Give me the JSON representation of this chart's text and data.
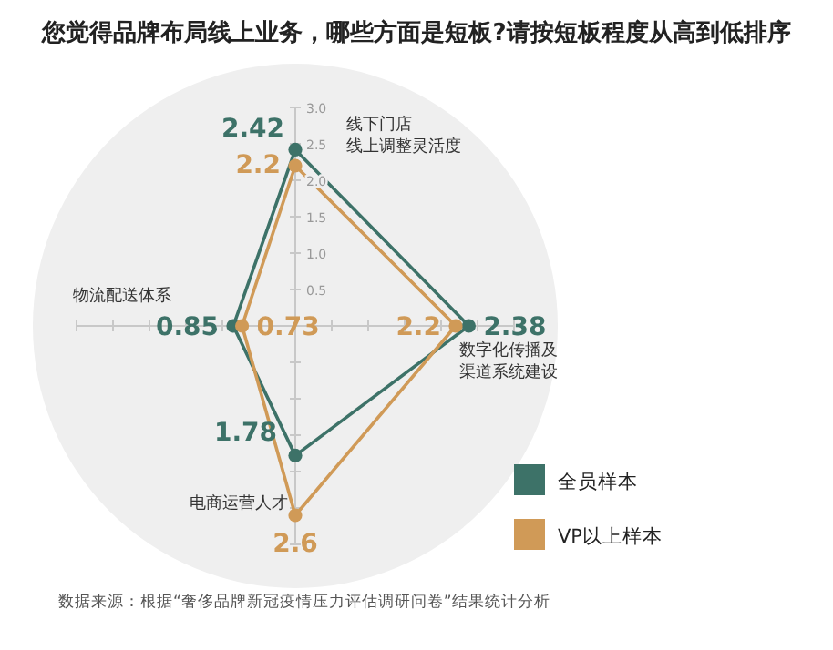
{
  "chart_data": {
    "type": "radar",
    "title": "您觉得品牌布局线上业务，哪些方面是短板?请按短板程度从高到低排序",
    "categories": [
      "线下门店线上调整灵活度",
      "数字化传播及渠道系统建设",
      "电商运营人才",
      "物流配送体系"
    ],
    "series": [
      {
        "name": "全员样本",
        "color": "#3d7268",
        "values": [
          2.42,
          2.38,
          1.78,
          0.85
        ]
      },
      {
        "name": "VP以上样本",
        "color": "#d09a57",
        "values": [
          2.2,
          2.2,
          2.6,
          0.73
        ]
      }
    ],
    "ylim": [
      0,
      3.6
    ],
    "yticks": [
      0.5,
      {
        "value": 1,
        "label": "1.0"
      },
      1.5,
      {
        "value": 2,
        "label": "2.0"
      },
      2.5,
      {
        "value": 3,
        "label": "3.0"
      }
    ],
    "data_labels": true,
    "marker": "circle",
    "legend": "bottom right",
    "annotations": [
      "数据来源：根据“奢侈品牌新冠疫情压力评估调研问卷”结果统计分析"
    ]
  }
}
